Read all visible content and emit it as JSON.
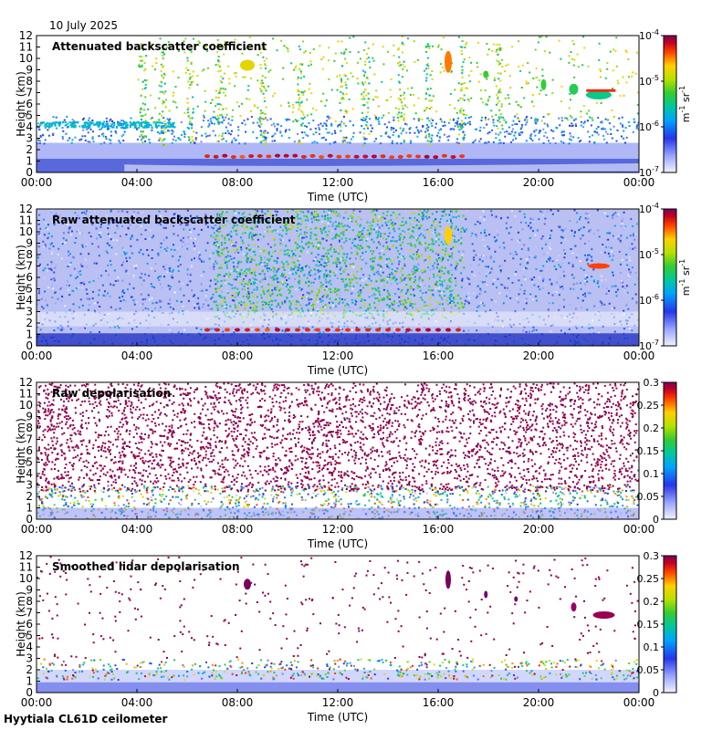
{
  "date": "10 July 2025",
  "footer": "Hyytiala CL61D ceilometer",
  "chart_data": [
    {
      "type": "heatmap",
      "title": "Attenuated backscatter coefficient",
      "xlabel": "Time (UTC)",
      "ylabel": "Height (km)",
      "xticks": [
        "00:00",
        "04:00",
        "08:00",
        "12:00",
        "16:00",
        "20:00",
        "00:00"
      ],
      "yticks": [
        "0",
        "1",
        "2",
        "3",
        "4",
        "5",
        "6",
        "7",
        "8",
        "9",
        "10",
        "11",
        "12"
      ],
      "ylim": [
        0,
        12
      ],
      "colorbar": {
        "scale": "log",
        "range": [
          1e-07,
          0.0001
        ],
        "unit_html": "m<tspan dy='-5' font-size='8'>-1</tspan><tspan dy='5'> sr</tspan><tspan dy='-5' font-size='8'>-1</tspan>",
        "ticks": [
          {
            "v": 0.0001,
            "base": "10",
            "exp": "-4"
          },
          {
            "v": 1e-05,
            "base": "10",
            "exp": "-5"
          },
          {
            "v": 1e-06,
            "base": "10",
            "exp": "-6"
          },
          {
            "v": 1e-07,
            "base": "10",
            "exp": "-7"
          }
        ]
      },
      "pattern": "backscatter"
    },
    {
      "type": "heatmap",
      "title": "Raw attenuated backscatter coefficient",
      "xlabel": "Time (UTC)",
      "ylabel": "Height (km)",
      "xticks": [
        "00:00",
        "04:00",
        "08:00",
        "12:00",
        "16:00",
        "20:00",
        "00:00"
      ],
      "yticks": [
        "0",
        "1",
        "2",
        "3",
        "4",
        "5",
        "6",
        "7",
        "8",
        "9",
        "10",
        "11",
        "12"
      ],
      "ylim": [
        0,
        12
      ],
      "colorbar": {
        "scale": "log",
        "range": [
          1e-07,
          0.0001
        ],
        "unit_html": "m<tspan dy='-5' font-size='8'>-1</tspan><tspan dy='5'> sr</tspan><tspan dy='-5' font-size='8'>-1</tspan>",
        "ticks": [
          {
            "v": 0.0001,
            "base": "10",
            "exp": "-4"
          },
          {
            "v": 1e-05,
            "base": "10",
            "exp": "-5"
          },
          {
            "v": 1e-06,
            "base": "10",
            "exp": "-6"
          },
          {
            "v": 1e-07,
            "base": "10",
            "exp": "-7"
          }
        ]
      },
      "pattern": "raw_backscatter"
    },
    {
      "type": "heatmap",
      "title": "Raw depolarisation",
      "xlabel": "Time (UTC)",
      "ylabel": "Height (km)",
      "xticks": [
        "00:00",
        "04:00",
        "08:00",
        "12:00",
        "16:00",
        "20:00",
        "00:00"
      ],
      "yticks": [
        "0",
        "1",
        "2",
        "3",
        "4",
        "5",
        "6",
        "7",
        "8",
        "9",
        "10",
        "11",
        "12"
      ],
      "ylim": [
        0,
        12
      ],
      "colorbar": {
        "scale": "linear",
        "range": [
          0,
          0.3
        ],
        "unit_html": "",
        "ticks": [
          {
            "v": 0.3,
            "label": "0.3"
          },
          {
            "v": 0.25,
            "label": "0.25"
          },
          {
            "v": 0.2,
            "label": "0.2"
          },
          {
            "v": 0.15,
            "label": "0.15"
          },
          {
            "v": 0.1,
            "label": "0.1"
          },
          {
            "v": 0.05,
            "label": "0.05"
          },
          {
            "v": 0,
            "label": "0"
          }
        ]
      },
      "pattern": "raw_depol"
    },
    {
      "type": "heatmap",
      "title": "Smoothed lidar depolarisation",
      "xlabel": "Time (UTC)",
      "ylabel": "Height (km)",
      "xticks": [
        "00:00",
        "04:00",
        "08:00",
        "12:00",
        "16:00",
        "20:00",
        "00:00"
      ],
      "yticks": [
        "0",
        "1",
        "2",
        "3",
        "4",
        "5",
        "6",
        "7",
        "8",
        "9",
        "10",
        "11",
        "12"
      ],
      "ylim": [
        0,
        12
      ],
      "colorbar": {
        "scale": "linear",
        "range": [
          0,
          0.3
        ],
        "unit_html": "",
        "ticks": [
          {
            "v": 0.3,
            "label": "0.3"
          },
          {
            "v": 0.25,
            "label": "0.25"
          },
          {
            "v": 0.2,
            "label": "0.2"
          },
          {
            "v": 0.15,
            "label": "0.15"
          },
          {
            "v": 0.1,
            "label": "0.1"
          },
          {
            "v": 0.05,
            "label": "0.05"
          },
          {
            "v": 0,
            "label": "0"
          }
        ]
      },
      "pattern": "smooth_depol"
    }
  ]
}
